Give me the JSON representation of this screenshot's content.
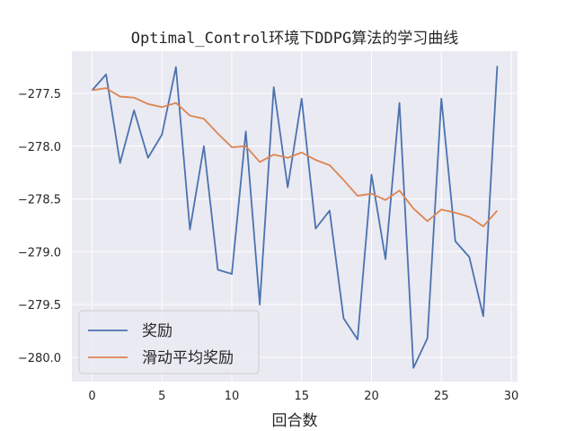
{
  "chart_data": {
    "type": "line",
    "title": "Optimal_Control环境下DDPG算法的学习曲线",
    "xlabel": "回合数",
    "ylabel": "",
    "xlim": [
      -1.45,
      30.45
    ],
    "ylim": [
      -280.23,
      -277.1
    ],
    "xticks": [
      0,
      5,
      10,
      15,
      20,
      25,
      30
    ],
    "yticks": [
      -277.5,
      -278.0,
      -278.5,
      -279.0,
      -279.5,
      -280.0
    ],
    "ytick_labels": [
      "−277.5",
      "−278.0",
      "−278.5",
      "−279.0",
      "−279.5",
      "−280.0"
    ],
    "grid": true,
    "legend_position": "lower-left",
    "x": [
      0,
      1,
      2,
      3,
      4,
      5,
      6,
      7,
      8,
      9,
      10,
      11,
      12,
      13,
      14,
      15,
      16,
      17,
      18,
      19,
      20,
      21,
      22,
      23,
      24,
      25,
      26,
      27,
      28,
      29
    ],
    "series": [
      {
        "name": "奖励",
        "color": "#4c72b0",
        "values": [
          -277.47,
          -277.32,
          -278.16,
          -277.66,
          -278.11,
          -277.89,
          -277.25,
          -278.79,
          -278.0,
          -279.17,
          -279.21,
          -277.86,
          -279.5,
          -277.44,
          -278.39,
          -277.55,
          -278.78,
          -278.61,
          -279.63,
          -279.83,
          -278.27,
          -279.07,
          -277.59,
          -280.1,
          -279.82,
          -277.55,
          -278.9,
          -279.05,
          -279.61,
          -277.24
        ]
      },
      {
        "name": "滑动平均奖励",
        "color": "#dd8452",
        "values": [
          -277.47,
          -277.45,
          -277.53,
          -277.54,
          -277.6,
          -277.63,
          -277.59,
          -277.71,
          -277.74,
          -277.88,
          -278.01,
          -278.0,
          -278.15,
          -278.08,
          -278.11,
          -278.06,
          -278.13,
          -278.18,
          -278.32,
          -278.47,
          -278.45,
          -278.51,
          -278.42,
          -278.59,
          -278.71,
          -278.6,
          -278.63,
          -278.67,
          -278.76,
          -278.61
        ]
      }
    ]
  }
}
